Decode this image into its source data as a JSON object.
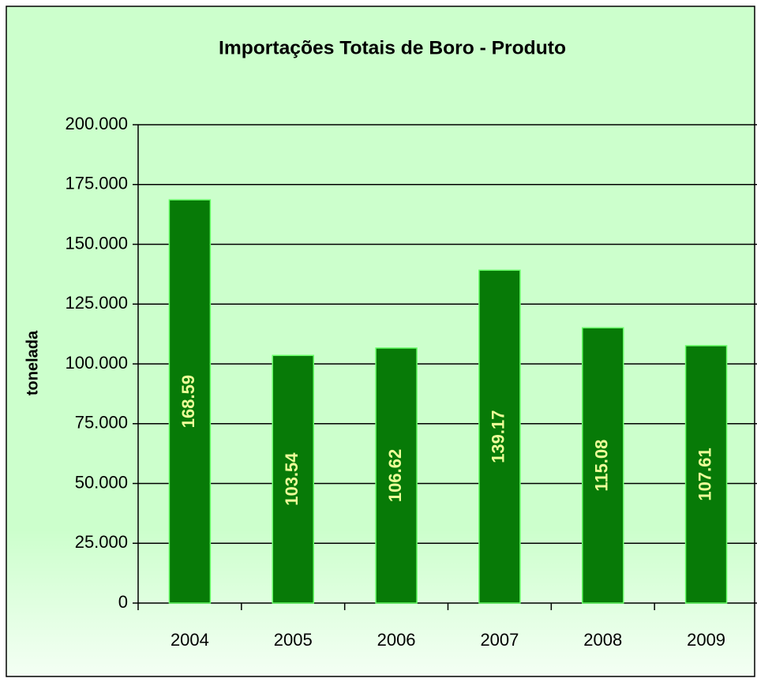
{
  "chart_data": {
    "type": "bar",
    "title": "Importações Totais de Boro - Produto",
    "y_label": "tonelada",
    "categories": [
      "2004",
      "2005",
      "2006",
      "2007",
      "2008",
      "2009"
    ],
    "values": [
      168590,
      103540,
      106620,
      139170,
      115080,
      107610
    ],
    "value_labels": [
      "168.59",
      "103.54",
      "106.62",
      "139.17",
      "115.08",
      "107.61"
    ],
    "color": "#077a07",
    "ylim": [
      0,
      200000
    ],
    "yticks": [
      0,
      {
        "value": 25000,
        "label": "25.000"
      },
      {
        "value": 50000,
        "label": "50.000"
      },
      {
        "value": 75000,
        "label": "75.000"
      },
      {
        "value": 100000,
        "label": "100.000"
      },
      {
        "value": 125000,
        "label": "125.000"
      },
      {
        "value": 150000,
        "label": "150.000"
      },
      {
        "value": 175000,
        "label": "175.000"
      },
      {
        "value": 200000,
        "label": "200.000"
      }
    ],
    "grid": true
  }
}
